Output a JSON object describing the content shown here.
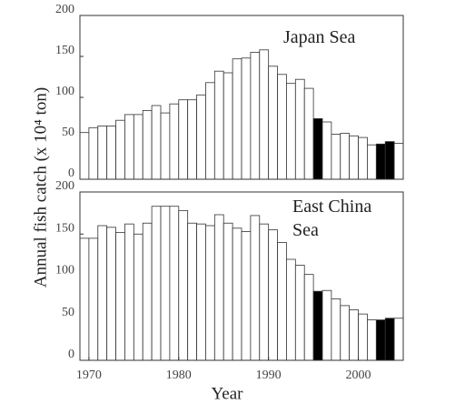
{
  "chart_data": [
    {
      "type": "bar",
      "title": "Japan Sea",
      "x": [
        1969,
        1970,
        1971,
        1972,
        1973,
        1974,
        1975,
        1976,
        1977,
        1978,
        1979,
        1980,
        1981,
        1982,
        1983,
        1984,
        1985,
        1986,
        1987,
        1988,
        1989,
        1990,
        1991,
        1992,
        1993,
        1994,
        1995,
        1996,
        1997,
        1998,
        1999,
        2000,
        2001,
        2002,
        2003,
        2004
      ],
      "values": [
        57,
        63,
        65,
        65,
        72,
        79,
        79,
        84,
        90,
        81,
        92,
        97,
        97,
        103,
        118,
        132,
        130,
        147,
        148,
        155,
        158,
        138,
        128,
        117,
        122,
        111,
        74,
        70,
        55,
        56,
        53,
        51,
        42,
        43,
        46,
        44
      ],
      "colors": [
        "#fff",
        "#fff",
        "#fff",
        "#fff",
        "#fff",
        "#fff",
        "#fff",
        "#fff",
        "#fff",
        "#fff",
        "#fff",
        "#fff",
        "#fff",
        "#fff",
        "#fff",
        "#fff",
        "#fff",
        "#fff",
        "#fff",
        "#fff",
        "#fff",
        "#fff",
        "#fff",
        "#fff",
        "#fff",
        "#fff",
        "#000",
        "#fff",
        "#fff",
        "#fff",
        "#fff",
        "#fff",
        "#fff",
        "#000",
        "#000",
        "#fff"
      ],
      "xlim": [
        1969,
        2005
      ],
      "ylim": [
        0,
        200
      ],
      "yticks": [
        0,
        50,
        100,
        150,
        200
      ],
      "ylabel": "Annual fish catch (x 10⁴ ton)"
    },
    {
      "type": "bar",
      "title": "East China Sea",
      "x": [
        1969,
        1970,
        1971,
        1972,
        1973,
        1974,
        1975,
        1976,
        1977,
        1978,
        1979,
        1980,
        1981,
        1982,
        1983,
        1984,
        1985,
        1986,
        1987,
        1988,
        1989,
        1990,
        1991,
        1992,
        1993,
        1994,
        1995,
        1996,
        1997,
        1998,
        1999,
        2000,
        2001,
        2002,
        2003,
        2004
      ],
      "values": [
        145,
        145,
        160,
        158,
        152,
        162,
        150,
        163,
        183,
        183,
        183,
        178,
        163,
        162,
        160,
        173,
        163,
        157,
        153,
        172,
        162,
        155,
        140,
        120,
        113,
        102,
        82,
        83,
        73,
        65,
        60,
        55,
        48,
        48,
        50,
        50
      ],
      "colors": [
        "#fff",
        "#fff",
        "#fff",
        "#fff",
        "#fff",
        "#fff",
        "#fff",
        "#fff",
        "#fff",
        "#fff",
        "#fff",
        "#fff",
        "#fff",
        "#fff",
        "#fff",
        "#fff",
        "#fff",
        "#fff",
        "#fff",
        "#fff",
        "#fff",
        "#fff",
        "#fff",
        "#fff",
        "#fff",
        "#fff",
        "#000",
        "#fff",
        "#fff",
        "#fff",
        "#fff",
        "#fff",
        "#fff",
        "#000",
        "#000",
        "#fff"
      ],
      "xlim": [
        1969,
        2005
      ],
      "ylim": [
        0,
        200
      ],
      "yticks": [
        0,
        50,
        100,
        150,
        200
      ],
      "xticks": [
        1970,
        1980,
        1990,
        2000
      ],
      "xlabel": "Year"
    }
  ]
}
